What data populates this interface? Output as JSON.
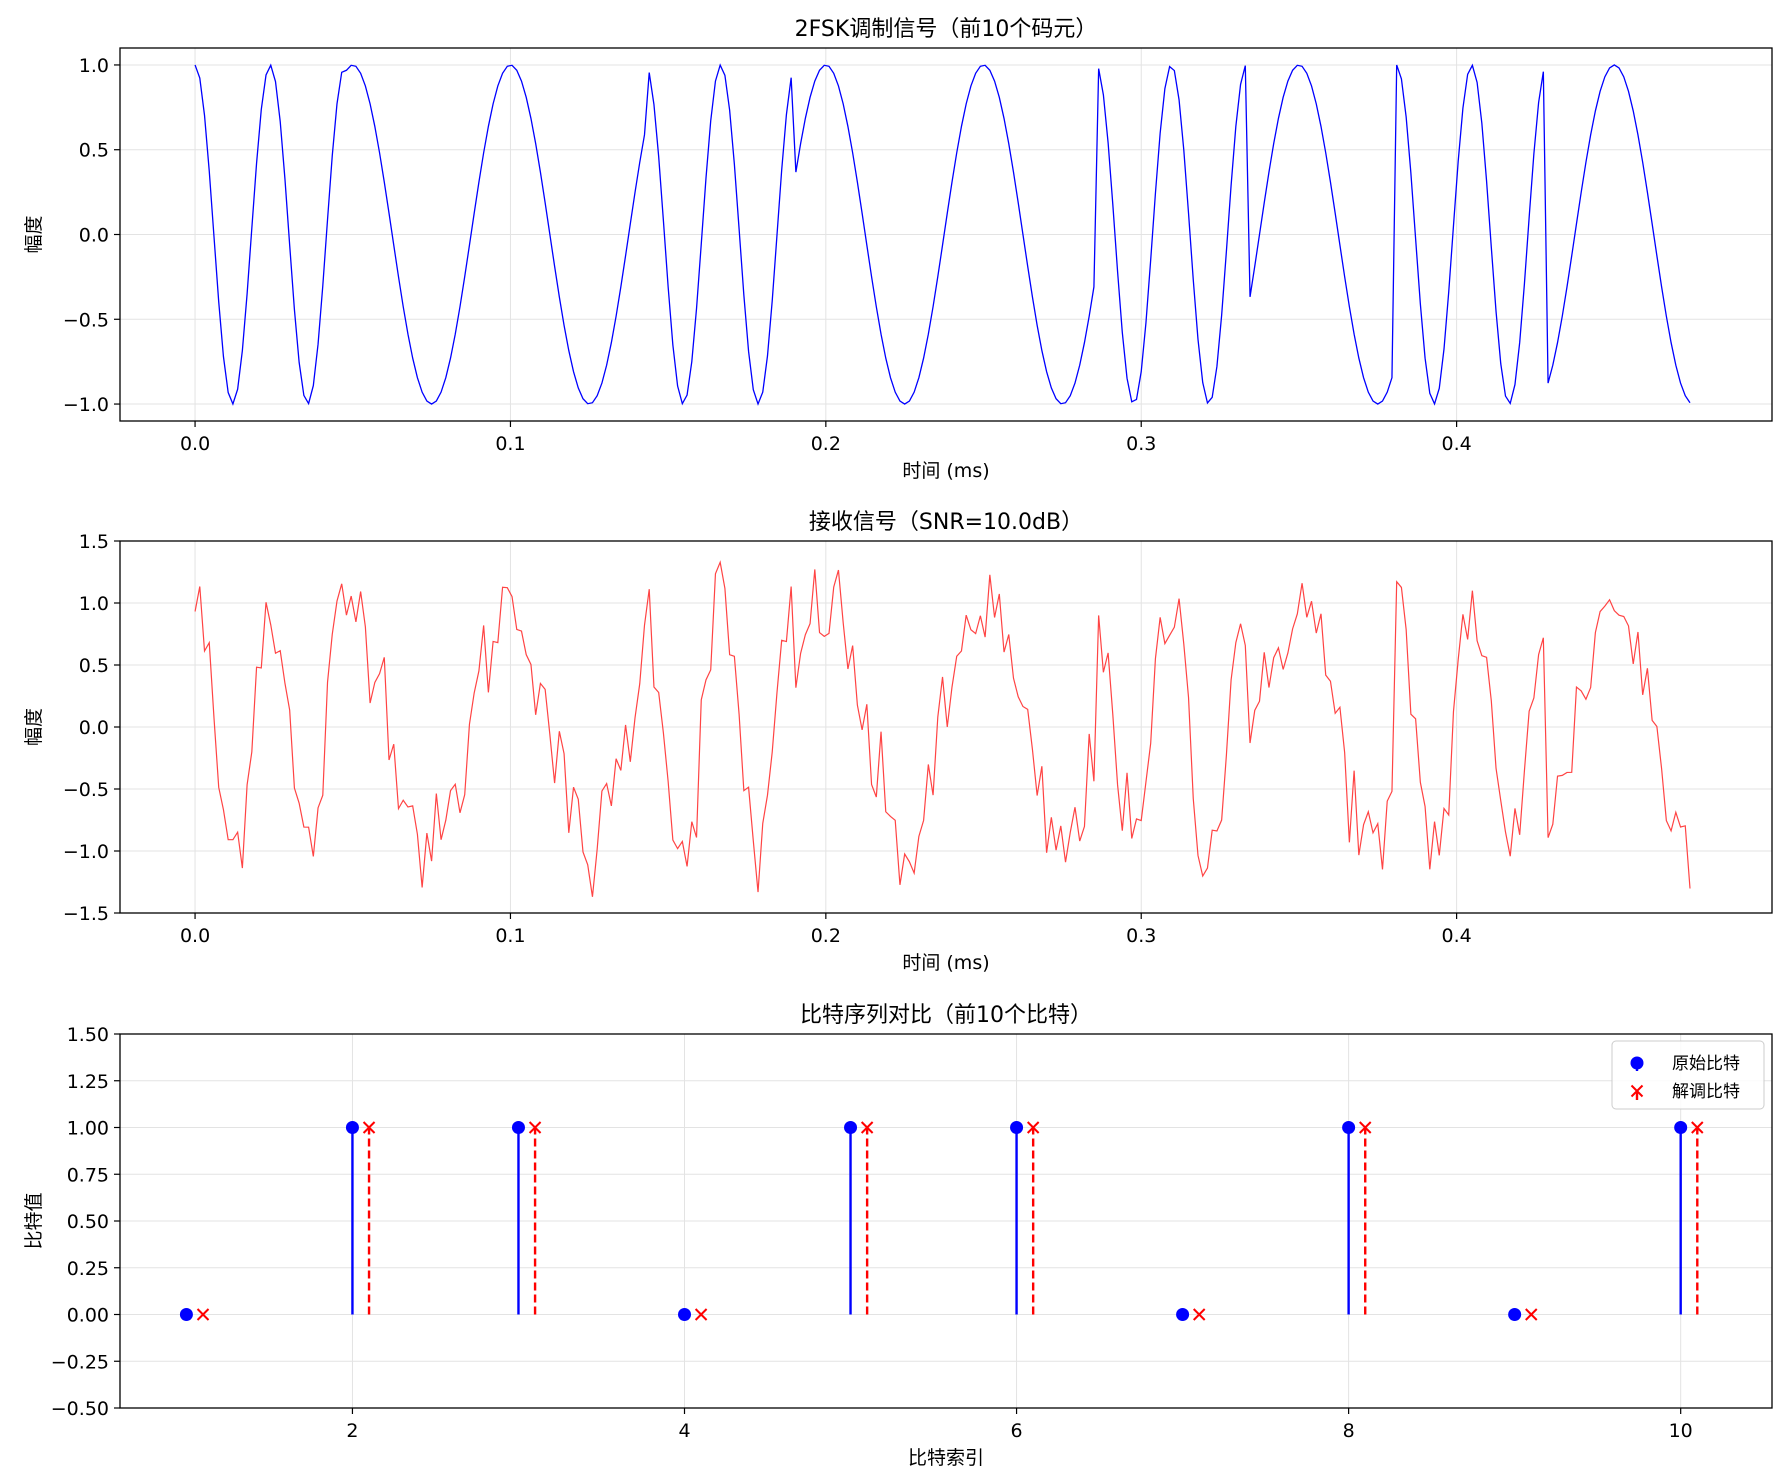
{
  "figure": {
    "background": "#ffffff"
  },
  "chart_data": [
    {
      "type": "line",
      "title": "2FSK调制信号（前10个码元）",
      "xlabel": "时间 (ms)",
      "ylabel": "幅度",
      "xlim": [
        -0.0238,
        0.5
      ],
      "ylim": [
        -1.1,
        1.1
      ],
      "xticks": [
        0.0,
        0.1,
        0.2,
        0.3,
        0.4
      ],
      "xtick_labels": [
        "0.0",
        "0.1",
        "0.2",
        "0.3",
        "0.4"
      ],
      "yticks": [
        1.0,
        0.5,
        0.0,
        -0.5,
        -1.0
      ],
      "ytick_labels": [
        "1.0",
        "0.5",
        "0.0",
        "−0.5",
        "−1.0"
      ],
      "grid": true,
      "series": [
        {
          "color": "#0000ff",
          "symbol_duration_ms": 0.0476,
          "sample_step_ms": 0.0015,
          "bits": [
            0,
            1,
            1,
            0,
            1,
            1,
            0,
            1,
            0,
            1
          ],
          "freq_khz_bit1": 20,
          "freq_khz_bit0": 42,
          "x_end_ms": 0.475
        }
      ]
    },
    {
      "type": "line",
      "title": "接收信号（SNR=10.0dB）",
      "xlabel": "时间 (ms)",
      "ylabel": "幅度",
      "xlim": [
        -0.0238,
        0.5
      ],
      "ylim": [
        -1.5,
        1.5
      ],
      "xticks": [
        0.0,
        0.1,
        0.2,
        0.3,
        0.4
      ],
      "xtick_labels": [
        "0.0",
        "0.1",
        "0.2",
        "0.3",
        "0.4"
      ],
      "yticks": [
        1.5,
        1.0,
        0.5,
        0.0,
        -0.5,
        -1.0,
        -1.5
      ],
      "ytick_labels": [
        "1.5",
        "1.0",
        "0.5",
        "0.0",
        "−0.5",
        "−1.0",
        "−1.5"
      ],
      "grid": true,
      "series": [
        {
          "color": "#ff4444",
          "signal": "2FSK signal above plus noise",
          "noise_std": 0.22
        }
      ]
    },
    {
      "type": "stem",
      "title": "比特序列对比（前10个比特）",
      "xlabel": "比特索引",
      "ylabel": "比特值",
      "xlim": [
        0.6,
        10.55
      ],
      "ylim": [
        -0.5,
        1.5
      ],
      "xticks": [
        2,
        4,
        6,
        8,
        10
      ],
      "xtick_labels": [
        "2",
        "4",
        "6",
        "8",
        "10"
      ],
      "yticks": [
        1.5,
        1.25,
        1.0,
        0.75,
        0.5,
        0.25,
        0.0,
        -0.25,
        -0.5
      ],
      "ytick_labels": [
        "1.50",
        "1.25",
        "1.00",
        "0.75",
        "0.50",
        "0.25",
        "0.00",
        "−0.25",
        "−0.50"
      ],
      "grid": true,
      "legend_position": "top-right",
      "series": [
        {
          "name": "原始比特",
          "marker": "o",
          "line": "solid",
          "color": "#0000ff",
          "x": [
            1,
            2,
            3,
            4,
            5,
            6,
            7,
            8,
            9,
            10
          ],
          "values": [
            0,
            1,
            1,
            0,
            1,
            1,
            0,
            1,
            0,
            1
          ]
        },
        {
          "name": "解调比特",
          "marker": "x",
          "line": "dashed",
          "color": "#ff0000",
          "x": [
            1.1,
            2.1,
            3.1,
            4.1,
            5.1,
            6.1,
            7.1,
            8.1,
            9.1,
            10.1
          ],
          "values": [
            0,
            1,
            1,
            0,
            1,
            1,
            0,
            1,
            0,
            1
          ]
        }
      ]
    }
  ]
}
